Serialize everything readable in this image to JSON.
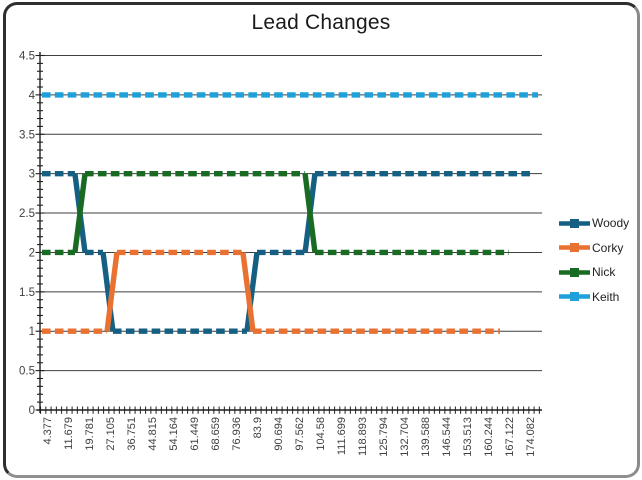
{
  "chart_data": {
    "type": "line",
    "title": "Lead Changes",
    "legend_position": "right",
    "grid": true,
    "x_axis": {
      "kind": "category",
      "tick_labels": [
        "4.377",
        "11.679",
        "19.781",
        "27.105",
        "36.751",
        "44.815",
        "54.164",
        "61.449",
        "68.659",
        "76.936",
        "83.9",
        "90.694",
        "97.562",
        "104.58",
        "111.699",
        "118.893",
        "125.794",
        "132.704",
        "139.588",
        "146.544",
        "153.513",
        "160.244",
        "167.122",
        "174.082"
      ],
      "label_rotation_deg": -90,
      "minor_ticks_per_label": 4
    },
    "y_axis": {
      "min": 0,
      "max": 4.5,
      "major_step": 0.5,
      "minor_step": 0.1,
      "tick_labels": [
        "0",
        "0.5",
        "1",
        "1.5",
        "2",
        "2.5",
        "3",
        "3.5",
        "4",
        "4.5"
      ]
    },
    "series": [
      {
        "name": "Woody",
        "color": "#156082",
        "dashed": true,
        "points": [
          [
            -0.24,
            3
          ],
          [
            1.33,
            3
          ],
          [
            1.81,
            2
          ],
          [
            2.67,
            2
          ],
          [
            3.14,
            1
          ],
          [
            9.52,
            1
          ],
          [
            10.0,
            2
          ],
          [
            12.29,
            2
          ],
          [
            12.76,
            3
          ],
          [
            23.0,
            3
          ]
        ]
      },
      {
        "name": "Corky",
        "color": "#E97132",
        "dashed": true,
        "points": [
          [
            -0.24,
            1
          ],
          [
            2.86,
            1
          ],
          [
            3.33,
            2
          ],
          [
            9.33,
            2
          ],
          [
            9.81,
            1
          ],
          [
            21.57,
            1
          ]
        ]
      },
      {
        "name": "Nick",
        "color": "#196B24",
        "dashed": true,
        "points": [
          [
            -0.24,
            2
          ],
          [
            1.33,
            2
          ],
          [
            1.81,
            3
          ],
          [
            12.29,
            3
          ],
          [
            12.76,
            2
          ],
          [
            22.0,
            2
          ]
        ]
      },
      {
        "name": "Keith",
        "color": "#1EA0DA",
        "dashed": true,
        "points": [
          [
            -0.24,
            4
          ],
          [
            23.38,
            4
          ]
        ]
      }
    ],
    "note_values_meaning": "points are [category-index, place]; category-index 0..23 maps to x_axis.tick_labels",
    "style": {
      "gridline_color": "#3f3f3f",
      "axis_color": "#1f1f1f",
      "label_color": "#404040",
      "title_color": "#1a1a1a"
    }
  }
}
